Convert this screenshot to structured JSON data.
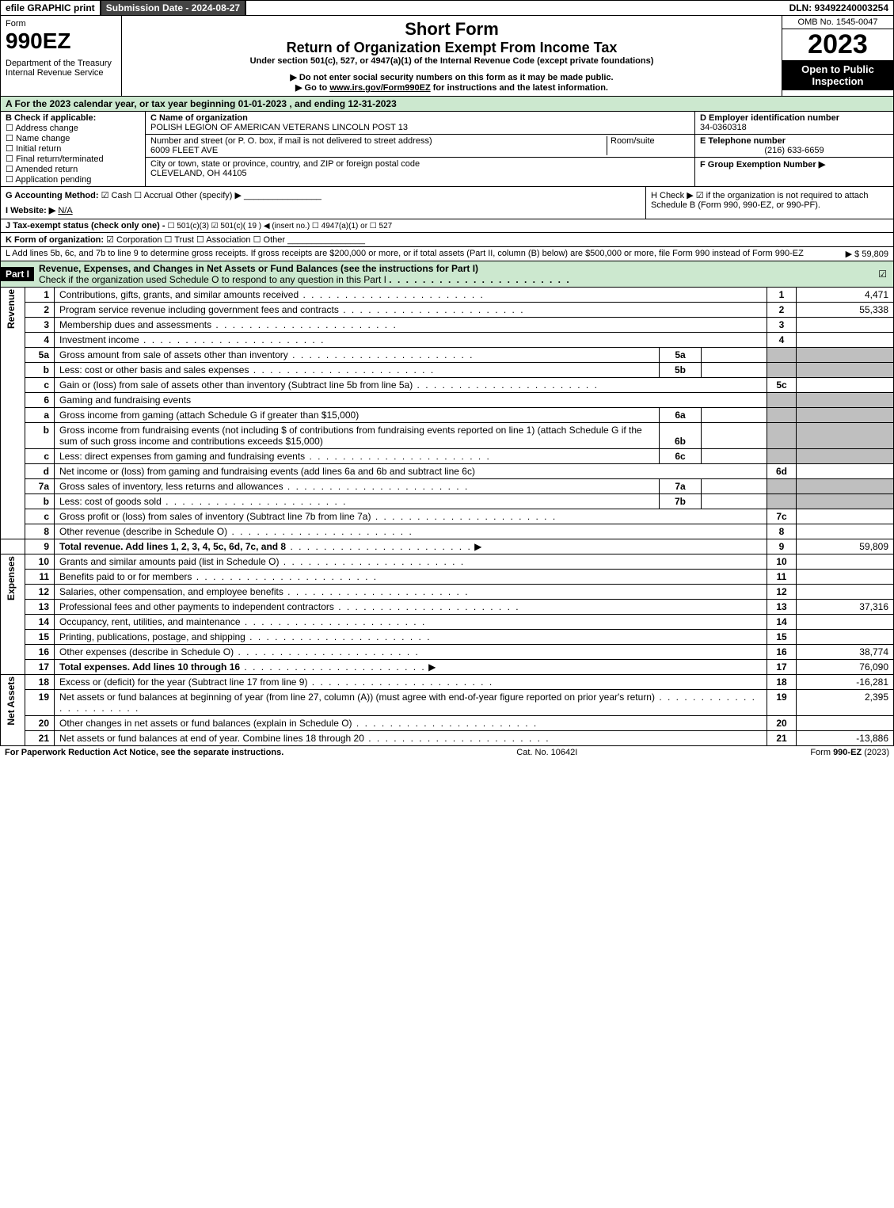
{
  "topbar": {
    "efile": "efile GRAPHIC print",
    "submission": "Submission Date - 2024-08-27",
    "dln": "DLN: 93492240003254"
  },
  "header": {
    "form_word": "Form",
    "form_num": "990EZ",
    "dept": "Department of the Treasury\nInternal Revenue Service",
    "short_form": "Short Form",
    "title": "Return of Organization Exempt From Income Tax",
    "under": "Under section 501(c), 527, or 4947(a)(1) of the Internal Revenue Code (except private foundations)",
    "note1": "▶ Do not enter social security numbers on this form as it may be made public.",
    "note2": "▶ Go to www.irs.gov/Form990EZ for instructions and the latest information.",
    "omb": "OMB No. 1545-0047",
    "year": "2023",
    "public": "Open to Public Inspection"
  },
  "a_line": "A  For the 2023 calendar year, or tax year beginning 01-01-2023 , and ending 12-31-2023",
  "b": {
    "title": "B  Check if applicable:",
    "opts": [
      "Address change",
      "Name change",
      "Initial return",
      "Final return/terminated",
      "Amended return",
      "Application pending"
    ]
  },
  "c": {
    "label": "C Name of organization",
    "name": "POLISH LEGION OF AMERICAN VETERANS LINCOLN POST 13",
    "street_label": "Number and street (or P. O. box, if mail is not delivered to street address)",
    "room_label": "Room/suite",
    "street": "6009 FLEET AVE",
    "city_label": "City or town, state or province, country, and ZIP or foreign postal code",
    "city": "CLEVELAND, OH  44105"
  },
  "d": {
    "label": "D Employer identification number",
    "value": "34-0360318"
  },
  "e": {
    "label": "E Telephone number",
    "value": "(216) 633-6659"
  },
  "f": {
    "label": "F Group Exemption Number  ▶"
  },
  "g": {
    "label": "G Accounting Method:",
    "cash": "☑ Cash",
    "accrual": "☐ Accrual",
    "other": "Other (specify) ▶"
  },
  "h": {
    "text": "H  Check ▶ ☑ if the organization is not required to attach Schedule B (Form 990, 990-EZ, or 990-PF)."
  },
  "i": {
    "label": "I Website: ▶",
    "value": "N/A"
  },
  "j": {
    "label": "J Tax-exempt status (check only one) -",
    "opts": "☐ 501(c)(3)  ☑ 501(c)( 19 ) ◀ (insert no.)  ☐ 4947(a)(1) or  ☐ 527"
  },
  "k": {
    "label": "K Form of organization:",
    "opts": "☑ Corporation  ☐ Trust  ☐ Association  ☐ Other"
  },
  "l": {
    "text": "L Add lines 5b, 6c, and 7b to line 9 to determine gross receipts. If gross receipts are $200,000 or more, or if total assets (Part II, column (B) below) are $500,000 or more, file Form 990 instead of Form 990-EZ",
    "amount": "▶ $ 59,809"
  },
  "part1": {
    "label": "Part I",
    "title": "Revenue, Expenses, and Changes in Net Assets or Fund Balances (see the instructions for Part I)",
    "check": "Check if the organization used Schedule O to respond to any question in this Part I",
    "checked": "☑"
  },
  "revenue_rows": [
    {
      "n": "1",
      "d": "Contributions, gifts, grants, and similar amounts received",
      "col": "1",
      "v": "4,471"
    },
    {
      "n": "2",
      "d": "Program service revenue including government fees and contracts",
      "col": "2",
      "v": "55,338"
    },
    {
      "n": "3",
      "d": "Membership dues and assessments",
      "col": "3",
      "v": ""
    },
    {
      "n": "4",
      "d": "Investment income",
      "col": "4",
      "v": ""
    }
  ],
  "r5a": {
    "n": "5a",
    "d": "Gross amount from sale of assets other than inventory",
    "sub": "5a"
  },
  "r5b": {
    "n": "b",
    "d": "Less: cost or other basis and sales expenses",
    "sub": "5b"
  },
  "r5c": {
    "n": "c",
    "d": "Gain or (loss) from sale of assets other than inventory (Subtract line 5b from line 5a)",
    "col": "5c"
  },
  "r6": {
    "n": "6",
    "d": "Gaming and fundraising events"
  },
  "r6a": {
    "n": "a",
    "d": "Gross income from gaming (attach Schedule G if greater than $15,000)",
    "sub": "6a"
  },
  "r6b": {
    "n": "b",
    "d": "Gross income from fundraising events (not including $                  of contributions from fundraising events reported on line 1) (attach Schedule G if the sum of such gross income and contributions exceeds $15,000)",
    "sub": "6b"
  },
  "r6c": {
    "n": "c",
    "d": "Less: direct expenses from gaming and fundraising events",
    "sub": "6c"
  },
  "r6d": {
    "n": "d",
    "d": "Net income or (loss) from gaming and fundraising events (add lines 6a and 6b and subtract line 6c)",
    "col": "6d"
  },
  "r7a": {
    "n": "7a",
    "d": "Gross sales of inventory, less returns and allowances",
    "sub": "7a"
  },
  "r7b": {
    "n": "b",
    "d": "Less: cost of goods sold",
    "sub": "7b"
  },
  "r7c": {
    "n": "c",
    "d": "Gross profit or (loss) from sales of inventory (Subtract line 7b from line 7a)",
    "col": "7c"
  },
  "r8": {
    "n": "8",
    "d": "Other revenue (describe in Schedule O)",
    "col": "8"
  },
  "r9": {
    "n": "9",
    "d": "Total revenue. Add lines 1, 2, 3, 4, 5c, 6d, 7c, and 8",
    "col": "9",
    "v": "59,809",
    "bold": true
  },
  "expense_rows": [
    {
      "n": "10",
      "d": "Grants and similar amounts paid (list in Schedule O)",
      "col": "10"
    },
    {
      "n": "11",
      "d": "Benefits paid to or for members",
      "col": "11"
    },
    {
      "n": "12",
      "d": "Salaries, other compensation, and employee benefits",
      "col": "12"
    },
    {
      "n": "13",
      "d": "Professional fees and other payments to independent contractors",
      "col": "13",
      "v": "37,316"
    },
    {
      "n": "14",
      "d": "Occupancy, rent, utilities, and maintenance",
      "col": "14"
    },
    {
      "n": "15",
      "d": "Printing, publications, postage, and shipping",
      "col": "15"
    },
    {
      "n": "16",
      "d": "Other expenses (describe in Schedule O)",
      "col": "16",
      "v": "38,774"
    },
    {
      "n": "17",
      "d": "Total expenses. Add lines 10 through 16",
      "col": "17",
      "v": "76,090",
      "bold": true
    }
  ],
  "net_rows": [
    {
      "n": "18",
      "d": "Excess or (deficit) for the year (Subtract line 17 from line 9)",
      "col": "18",
      "v": "-16,281"
    },
    {
      "n": "19",
      "d": "Net assets or fund balances at beginning of year (from line 27, column (A)) (must agree with end-of-year figure reported on prior year's return)",
      "col": "19",
      "v": "2,395"
    },
    {
      "n": "20",
      "d": "Other changes in net assets or fund balances (explain in Schedule O)",
      "col": "20"
    },
    {
      "n": "21",
      "d": "Net assets or fund balances at end of year. Combine lines 18 through 20",
      "col": "21",
      "v": "-13,886"
    }
  ],
  "side_labels": {
    "rev": "Revenue",
    "exp": "Expenses",
    "net": "Net Assets"
  },
  "footer": {
    "left": "For Paperwork Reduction Act Notice, see the separate instructions.",
    "mid": "Cat. No. 10642I",
    "right": "Form 990-EZ (2023)"
  }
}
